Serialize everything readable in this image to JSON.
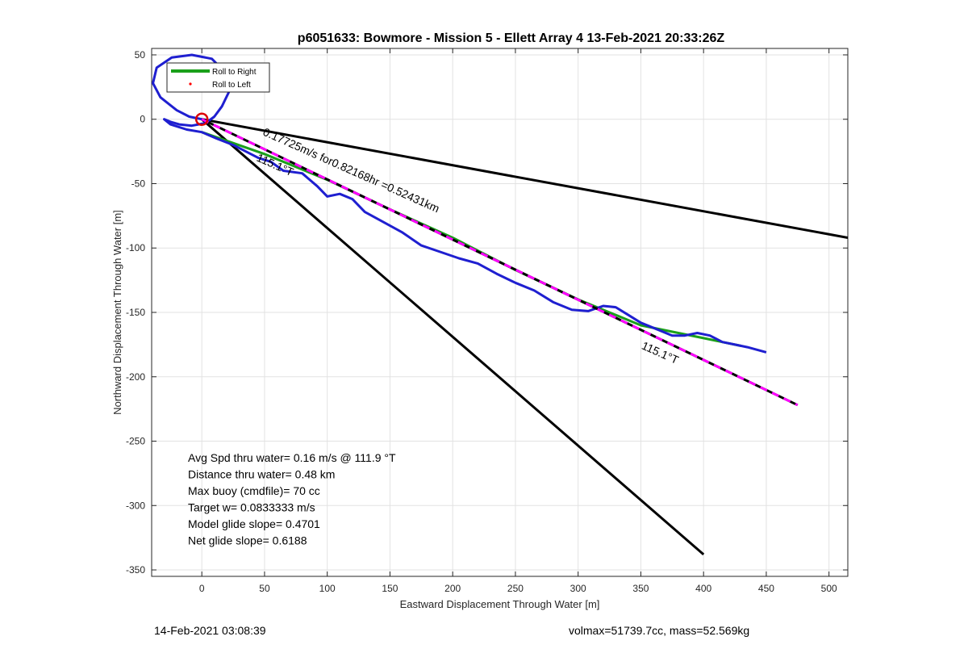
{
  "chart_data": {
    "type": "line",
    "title": "p6051633: Bowmore - Mission 5 - Ellett Array 4 13-Feb-2021 20:33:26Z",
    "xlabel": "Eastward Displacement Through Water [m]",
    "ylabel": "Northward Displacement Through Water [m]",
    "xlim": [
      -40,
      515
    ],
    "ylim": [
      -355,
      55
    ],
    "xticks": [
      0,
      50,
      100,
      150,
      200,
      250,
      300,
      350,
      400,
      450,
      500
    ],
    "yticks": [
      50,
      0,
      -50,
      -100,
      -150,
      -200,
      -250,
      -300,
      -350
    ],
    "grid": true,
    "legend": {
      "placement": "top-left",
      "entries": [
        "Roll to Right",
        "Roll to Left"
      ]
    },
    "series": [
      {
        "name": "Roll to Right",
        "color": "#1aa01a",
        "x": [
          0,
          50,
          100,
          150,
          200,
          250,
          300,
          350,
          400,
          430
        ],
        "y": [
          -10,
          -27,
          -47,
          -70,
          -92,
          -117,
          -140,
          -160,
          -170,
          -176
        ]
      },
      {
        "name": "Roll to Left",
        "color": "#ff0000",
        "x": [],
        "y": []
      },
      {
        "color": "#1f1fd0",
        "x": [
          0,
          -10,
          -20,
          -33,
          -39,
          -36,
          -24,
          -8,
          8,
          20,
          22,
          16,
          10,
          3,
          -8,
          -18,
          -25,
          -30,
          -25,
          -12,
          0,
          12,
          25,
          35,
          45,
          55,
          65,
          80,
          92,
          100,
          110,
          120,
          130,
          145,
          160,
          175,
          190,
          205,
          220,
          235,
          250,
          265,
          280,
          295,
          308,
          320,
          330,
          340,
          350,
          365,
          375,
          385,
          395,
          405,
          415,
          425,
          435,
          450
        ],
        "y": [
          0,
          2,
          7,
          17,
          28,
          40,
          48,
          50,
          47,
          35,
          22,
          10,
          2,
          -3,
          -5,
          -4,
          -2,
          0,
          -4,
          -8,
          -10,
          -15,
          -20,
          -25,
          -30,
          -33,
          -40,
          -42,
          -52,
          -60,
          -58,
          -62,
          -72,
          -80,
          -88,
          -98,
          -103,
          -108,
          -112,
          -120,
          -127,
          -133,
          -142,
          -148,
          -149,
          -145,
          -146,
          -152,
          -158,
          -164,
          -168,
          -168,
          -166,
          -168,
          -173,
          -175,
          -177,
          -181
        ]
      },
      {
        "color": "#ff00ff",
        "dashed_with": "#000000",
        "x": [
          0,
          475
        ],
        "y": [
          0,
          -222
        ]
      },
      {
        "color": "#000000",
        "x": [
          0,
          515
        ],
        "y": [
          0,
          -92
        ]
      },
      {
        "color": "#000000",
        "x": [
          0,
          400
        ],
        "y": [
          0,
          -338
        ]
      }
    ],
    "start_marker": {
      "x": 0,
      "y": 0,
      "color": "#dd0000"
    },
    "annotations": [
      {
        "text": "0.17725m/s for0.82168hr =0.52431km",
        "x": 48,
        "y": -12,
        "rotation": 24
      },
      {
        "text": "115.1°T",
        "x": 43,
        "y": -32,
        "rotation": 24
      },
      {
        "text": "115.1°T",
        "x": 350,
        "y": -178,
        "rotation": 24
      }
    ],
    "stats": [
      "Avg Spd thru water=  0.16 m/s @ 111.9 °T",
      "Distance thru water=  0.48 km",
      "Max buoy (cmdfile)= 70 cc",
      "Target w= 0.0833333 m/s",
      "Model glide slope= 0.4701",
      "Net glide slope= 0.6188"
    ]
  },
  "footer": {
    "timestamp": "14-Feb-2021 03:08:39",
    "mass_info": "volmax=51739.7cc, mass=52.569kg"
  }
}
